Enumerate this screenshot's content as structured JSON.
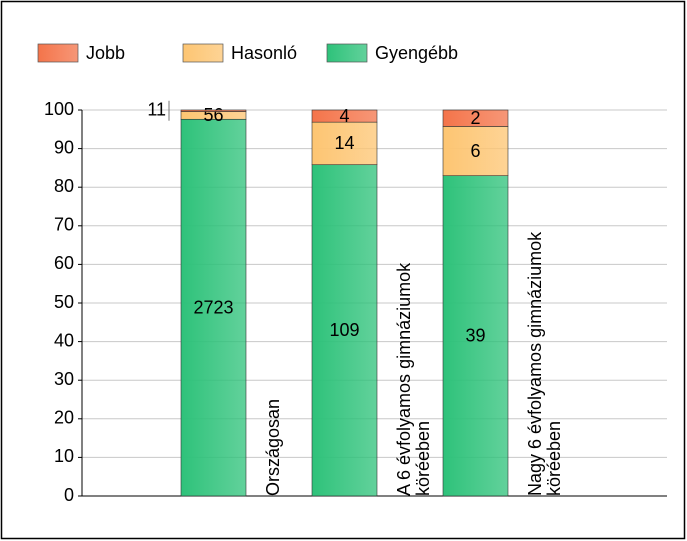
{
  "chart_data": {
    "type": "bar",
    "stacked": "percent",
    "categories": [
      "Országosan",
      "A 6 évfolyamos gimnáziumok köréeben",
      "Nagy 6 évfolyamos gimnáziumok köréeben"
    ],
    "series": [
      {
        "name": "Gyengébb",
        "color": "#2ec27a",
        "values": [
          2723,
          109,
          39
        ]
      },
      {
        "name": "Hasonló",
        "color": "#fdc572",
        "values": [
          56,
          14,
          6
        ]
      },
      {
        "name": "Jobb",
        "color": "#f4744a",
        "values": [
          11,
          4,
          2
        ]
      }
    ],
    "legend_order": [
      "Jobb",
      "Hasonló",
      "Gyengébb"
    ],
    "ylim": [
      0,
      100
    ],
    "yticks": [
      0,
      10,
      20,
      30,
      40,
      50,
      60,
      70,
      80,
      90,
      100
    ],
    "grid": true,
    "legend": "top"
  }
}
